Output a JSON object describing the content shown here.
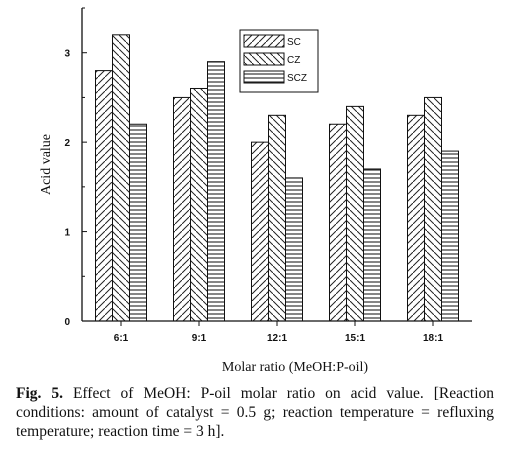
{
  "chart_data": {
    "type": "bar",
    "categories": [
      "6:1",
      "9:1",
      "12:1",
      "15:1",
      "18:1"
    ],
    "series": [
      {
        "name": "SC",
        "values": [
          2.8,
          2.5,
          2.0,
          2.2,
          2.3
        ]
      },
      {
        "name": "CZ",
        "values": [
          3.2,
          2.6,
          2.3,
          2.4,
          2.5
        ]
      },
      {
        "name": "SCZ",
        "values": [
          2.2,
          2.9,
          1.6,
          1.7,
          1.9
        ]
      }
    ],
    "ylabel": "Acid value",
    "xlabel": "Molar ratio (MeOH:P-oil)",
    "ylim": [
      0,
      3.5
    ],
    "yticks": [
      "0",
      "1",
      "2",
      "3"
    ],
    "legend_placement": "top-right",
    "grid": false
  },
  "legend_labels": [
    "SC",
    "CZ",
    "SCZ"
  ],
  "caption": {
    "label": "Fig. 5.",
    "text": "Effect of MeOH: P-oil molar ratio on acid value. [Reaction conditions: amount of catalyst = 0.5 g; reaction temperature = refluxing temperature; reaction time = 3 h]."
  }
}
